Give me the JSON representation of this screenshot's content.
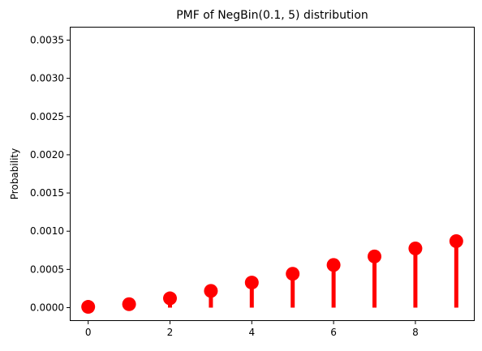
{
  "chart_data": {
    "type": "stem",
    "title": "PMF of NegBin(0.1, 5) distribution",
    "xlabel": "",
    "ylabel": "Probability",
    "x": [
      0,
      1,
      2,
      3,
      4,
      5,
      6,
      7,
      8,
      9
    ],
    "values": [
      1e-05,
      4.5e-05,
      0.0001215,
      0.0002187,
      0.0003281,
      0.0004429,
      0.0005581,
      0.0006698,
      0.0007745,
      0.00087
    ],
    "xlim": [
      -0.45,
      9.45
    ],
    "ylim": [
      -0.000175,
      0.003675
    ],
    "xticks": [
      0,
      2,
      4,
      6,
      8
    ],
    "xtick_labels": [
      "0",
      "2",
      "4",
      "6",
      "8"
    ],
    "yticks": [
      0.0,
      0.0005,
      0.001,
      0.0015,
      0.002,
      0.0025,
      0.003,
      0.0035
    ],
    "ytick_labels": [
      "0.0000",
      "0.0005",
      "0.0010",
      "0.0015",
      "0.0020",
      "0.0025",
      "0.0030",
      "0.0035"
    ],
    "grid": false,
    "legend": "none",
    "color": "#ff0000"
  }
}
